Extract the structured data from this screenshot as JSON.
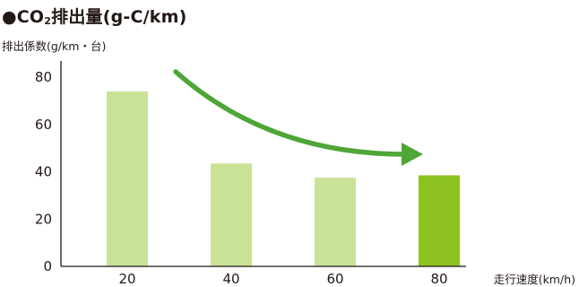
{
  "title": {
    "prefix": "●CO",
    "sub": "2",
    "suffix": "排出量(g-C/km)"
  },
  "chart_data": {
    "type": "bar",
    "title": "●CO2排出量(g-C/km)",
    "ylabel": "排出係数(g/km・台)",
    "xlabel": "走行速度(km/h)",
    "categories": [
      "20",
      "40",
      "60",
      "80"
    ],
    "values": [
      74,
      43.5,
      37.5,
      38.5
    ],
    "ylim": [
      0,
      80
    ],
    "yticks": [
      "0",
      "20",
      "40",
      "60",
      "80"
    ],
    "grid": false,
    "colors": {
      "bar": "#c9e296",
      "highlight": "#8dc220",
      "arrow": "#4ea636",
      "axis": "#231815"
    },
    "highlight_index": 3,
    "annotations": [
      {
        "type": "arrow",
        "from_category": "20",
        "to_category": "80",
        "meaning": "decreasing trend"
      }
    ]
  }
}
